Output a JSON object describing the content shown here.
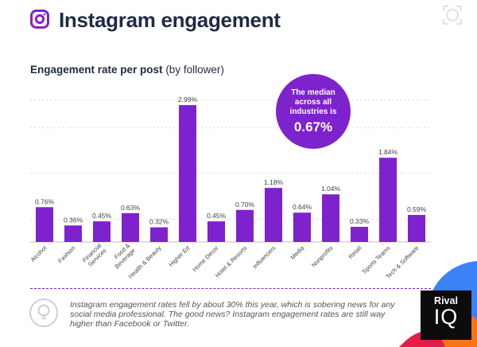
{
  "header": {
    "title": "Instagram engagement",
    "subtitle_bold": "Engagement rate per post",
    "subtitle_light": "(by follower)"
  },
  "median_badge": {
    "text": "The median across all industries is",
    "value": "0.67%"
  },
  "chart_data": {
    "type": "bar",
    "title": "Engagement rate per post (by follower)",
    "xlabel": "",
    "ylabel": "",
    "ylim": [
      0,
      3.2
    ],
    "grid": true,
    "categories": [
      "Alcohol",
      "Fashion",
      "Financial Services",
      "Food & Beverage",
      "Health & Beauty",
      "Higher Ed",
      "Home Decor",
      "Hotel & Resorts",
      "Influencers",
      "Media",
      "Nonprofits",
      "Retail",
      "Sports Teams",
      "Tech & Software"
    ],
    "tick_labels": [
      [
        "Alcohol"
      ],
      [
        "Fashion"
      ],
      [
        "Financial",
        "Services"
      ],
      [
        "Food &",
        "Beverage"
      ],
      [
        "Health & Beauty"
      ],
      [
        "Higher Ed"
      ],
      [
        "Home Decor"
      ],
      [
        "Hotel & Resorts"
      ],
      [
        "Influencers"
      ],
      [
        "Media"
      ],
      [
        "Nonprofits"
      ],
      [
        "Retail"
      ],
      [
        "Sports Teams"
      ],
      [
        "Tech & Software"
      ]
    ],
    "values": [
      0.76,
      0.36,
      0.45,
      0.63,
      0.32,
      2.99,
      0.45,
      0.7,
      1.18,
      0.64,
      1.04,
      0.33,
      1.84,
      0.59
    ],
    "value_labels": [
      "0.76%",
      "0.36%",
      "0.45%",
      "0.63%",
      "0.32%",
      "2.99%",
      "0.45%",
      "0.70%",
      "1.18%",
      "0.64%",
      "1.04%",
      "0.33%",
      "1.84%",
      "0.59%"
    ],
    "bar_color": "#7e22ce"
  },
  "footnote": "Instagram engagement rates fell by about 30% this year, which is sobering news for any social media professional. The good news? Instagram engagement rates are still way higher than Facebook or Twitter.",
  "logo": {
    "line1": "Rival",
    "line2": "IQ"
  },
  "colors": {
    "accent": "#7e22ce",
    "title": "#1f2a44",
    "grid": "#d9d9d9",
    "decor_blue": "#3b82f6",
    "decor_orange": "#f97316",
    "decor_red": "#e11d48"
  }
}
